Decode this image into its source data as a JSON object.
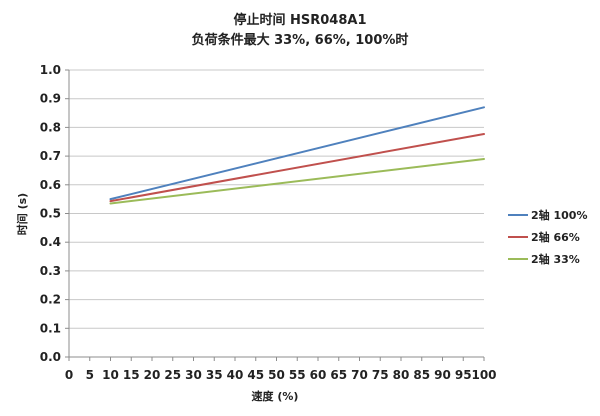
{
  "chart_data": {
    "type": "line",
    "title": "停止时间 HSR048A1",
    "subtitle": "负荷条件最大 33%, 66%, 100%时",
    "xlabel": "速度 (%)",
    "ylabel": "时间 (s)",
    "xlim": [
      0,
      100
    ],
    "ylim": [
      0.0,
      1.0
    ],
    "x_ticks": [
      "0",
      "5",
      "10",
      "15",
      "20",
      "25",
      "30",
      "35",
      "40",
      "45",
      "50",
      "55",
      "60",
      "65",
      "70",
      "75",
      "80",
      "85",
      "90",
      "95",
      "100"
    ],
    "y_ticks": [
      "0.0",
      "0.1",
      "0.2",
      "0.3",
      "0.4",
      "0.5",
      "0.6",
      "0.7",
      "0.8",
      "0.9",
      "1.0"
    ],
    "x_tick_values": [
      0,
      5,
      10,
      15,
      20,
      25,
      30,
      35,
      40,
      45,
      50,
      55,
      60,
      65,
      70,
      75,
      80,
      85,
      90,
      95,
      100
    ],
    "y_tick_values": [
      0.0,
      0.1,
      0.2,
      0.3,
      0.4,
      0.5,
      0.6,
      0.7,
      0.8,
      0.9,
      1.0
    ],
    "grid": "horizontal",
    "legend_position": "right",
    "series": [
      {
        "name": "2轴 100%",
        "color": "#4f81bd",
        "x": [
          10,
          100
        ],
        "y": [
          0.55,
          0.87
        ]
      },
      {
        "name": "2轴 66%",
        "color": "#c0504d",
        "x": [
          10,
          100
        ],
        "y": [
          0.543,
          0.777
        ]
      },
      {
        "name": "2轴 33%",
        "color": "#9bbb59",
        "x": [
          10,
          100
        ],
        "y": [
          0.535,
          0.69
        ]
      }
    ]
  }
}
